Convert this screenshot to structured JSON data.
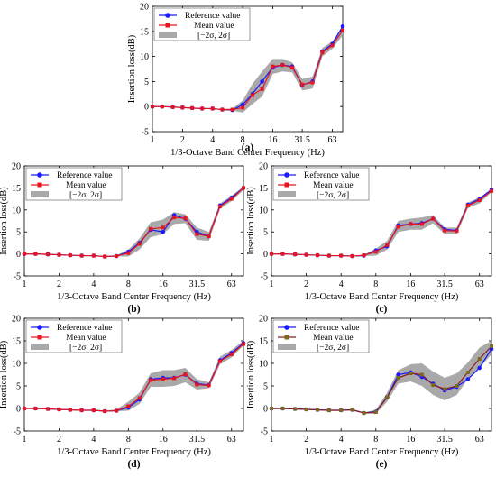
{
  "legend": {
    "reference": "Reference value",
    "mean": "Mean value",
    "band": "[−2σ, 2σ]"
  },
  "axes": {
    "xlabel": "1/3-Octave Band Center Frequency (Hz)",
    "ylabel": "Insertion loss(dB)",
    "xticks": [
      "1",
      "2",
      "4",
      "8",
      "16",
      "31.5",
      "63"
    ],
    "yticks": [
      "-5",
      "0",
      "5",
      "10",
      "15",
      "20"
    ]
  },
  "colors": {
    "reference": "#1a1aff",
    "mean": "#e8141e",
    "band": "#a9a9a9",
    "mean_line_e": "#8b1a1a",
    "mean_marker_e": "#7a6a1a"
  },
  "chart_data": [
    {
      "type": "line",
      "panel_label": "(a)",
      "x": [
        1,
        1.25,
        1.6,
        2,
        2.5,
        3.15,
        4,
        5,
        6.3,
        8,
        10,
        12.5,
        16,
        20,
        25,
        31.5,
        40,
        50,
        63,
        80
      ],
      "xlim": [
        1,
        80
      ],
      "xscale": "log",
      "ylim": [
        -5,
        20
      ],
      "legend_position": "top-left",
      "series": [
        {
          "name": "Reference value",
          "values": [
            0,
            0,
            -0.1,
            -0.2,
            -0.3,
            -0.4,
            -0.4,
            -0.6,
            -0.7,
            0.4,
            2.5,
            5.0,
            7.8,
            8.3,
            8.0,
            4.3,
            5.0,
            11.0,
            12.5,
            16.0
          ]
        },
        {
          "name": "Mean value",
          "values": [
            0,
            0,
            -0.1,
            -0.2,
            -0.3,
            -0.4,
            -0.4,
            -0.6,
            -0.6,
            -0.2,
            2.3,
            3.5,
            8.0,
            8.3,
            7.8,
            4.4,
            4.8,
            10.8,
            12.2,
            15.2
          ]
        }
      ],
      "band": {
        "name": "[−2σ, 2σ]",
        "lower": [
          0,
          0,
          -0.1,
          -0.2,
          -0.3,
          -0.4,
          -0.4,
          -0.7,
          -0.8,
          -1.2,
          0.5,
          2.0,
          6.5,
          7.0,
          6.8,
          3.2,
          3.6,
          10.0,
          11.5,
          14.2
        ],
        "upper": [
          0,
          0,
          -0.1,
          -0.2,
          -0.3,
          -0.4,
          -0.4,
          -0.5,
          -0.4,
          1.2,
          4.5,
          7.0,
          9.5,
          9.5,
          8.8,
          5.5,
          6.0,
          11.7,
          13.0,
          16.0
        ]
      }
    },
    {
      "type": "line",
      "panel_label": "(b)",
      "x": [
        1,
        1.25,
        1.6,
        2,
        2.5,
        3.15,
        4,
        5,
        6.3,
        8,
        10,
        12.5,
        16,
        20,
        25,
        31.5,
        40,
        50,
        63,
        80
      ],
      "xlim": [
        1,
        80
      ],
      "xscale": "log",
      "ylim": [
        -5,
        20
      ],
      "legend_position": "top-left",
      "series": [
        {
          "name": "Reference value",
          "values": [
            0,
            0,
            -0.1,
            -0.2,
            -0.3,
            -0.4,
            -0.4,
            -0.6,
            -0.5,
            0.5,
            2.5,
            5.5,
            5.0,
            8.8,
            8.0,
            5.0,
            4.0,
            11.0,
            12.8,
            15.0
          ]
        },
        {
          "name": "Mean value",
          "values": [
            0,
            0,
            -0.1,
            -0.2,
            -0.3,
            -0.4,
            -0.4,
            -0.6,
            -0.5,
            0.2,
            2.3,
            5.7,
            6.0,
            8.3,
            8.1,
            4.5,
            4.0,
            10.8,
            12.5,
            15.0
          ]
        }
      ],
      "band": {
        "name": "[−2σ, 2σ]",
        "lower": [
          0,
          0,
          -0.1,
          -0.2,
          -0.3,
          -0.4,
          -0.4,
          -0.7,
          -0.6,
          -0.6,
          1.0,
          3.8,
          4.5,
          6.8,
          7.0,
          3.2,
          3.0,
          10.2,
          12.0,
          14.5
        ],
        "upper": [
          0,
          0,
          -0.1,
          -0.2,
          -0.3,
          -0.4,
          -0.4,
          -0.5,
          -0.3,
          1.0,
          3.5,
          7.2,
          7.8,
          9.5,
          9.0,
          6.0,
          5.0,
          11.5,
          13.2,
          15.3
        ]
      }
    },
    {
      "type": "line",
      "panel_label": "(c)",
      "x": [
        1,
        1.25,
        1.6,
        2,
        2.5,
        3.15,
        4,
        5,
        6.3,
        8,
        10,
        12.5,
        16,
        20,
        25,
        31.5,
        40,
        50,
        63,
        80
      ],
      "xlim": [
        1,
        80
      ],
      "xscale": "log",
      "ylim": [
        -5,
        20
      ],
      "legend_position": "top-left",
      "series": [
        {
          "name": "Reference value",
          "values": [
            0,
            0,
            -0.1,
            -0.2,
            -0.3,
            -0.4,
            -0.4,
            -0.5,
            -0.4,
            0.8,
            1.7,
            6.5,
            6.8,
            7.0,
            8.0,
            5.6,
            5.3,
            11.2,
            12.5,
            14.6
          ]
        },
        {
          "name": "Mean value",
          "values": [
            0,
            0,
            -0.1,
            -0.2,
            -0.3,
            -0.4,
            -0.4,
            -0.5,
            -0.3,
            0.5,
            2.0,
            6.2,
            6.8,
            6.8,
            8.0,
            5.3,
            5.2,
            11.0,
            12.2,
            14.3
          ]
        }
      ],
      "band": {
        "name": "[−2σ, 2σ]",
        "lower": [
          0,
          0,
          -0.1,
          -0.2,
          -0.3,
          -0.4,
          -0.4,
          -0.6,
          -0.5,
          -0.4,
          1.0,
          5.0,
          5.5,
          5.5,
          7.0,
          4.5,
          4.5,
          10.4,
          11.5,
          14.0
        ],
        "upper": [
          0,
          0,
          -0.1,
          -0.2,
          -0.3,
          -0.4,
          -0.4,
          -0.4,
          -0.2,
          1.2,
          3.0,
          7.5,
          8.0,
          8.3,
          8.8,
          6.0,
          6.0,
          11.7,
          12.8,
          14.8
        ]
      }
    },
    {
      "type": "line",
      "panel_label": "(d)",
      "x": [
        1,
        1.25,
        1.6,
        2,
        2.5,
        3.15,
        4,
        5,
        6.3,
        8,
        10,
        12.5,
        16,
        20,
        25,
        31.5,
        40,
        50,
        63,
        80
      ],
      "xlim": [
        1,
        80
      ],
      "xscale": "log",
      "ylim": [
        -5,
        20
      ],
      "legend_position": "top-left",
      "series": [
        {
          "name": "Reference value",
          "values": [
            0,
            0,
            -0.1,
            -0.2,
            -0.3,
            -0.4,
            -0.4,
            -0.6,
            -0.5,
            0.2,
            2.0,
            6.5,
            6.8,
            6.8,
            7.5,
            5.5,
            5.2,
            10.7,
            12.3,
            14.5
          ]
        },
        {
          "name": "Mean value",
          "values": [
            0,
            0,
            -0.1,
            -0.2,
            -0.3,
            -0.4,
            -0.4,
            -0.6,
            -0.5,
            0.5,
            2.3,
            6.3,
            6.5,
            6.7,
            7.6,
            5.3,
            5.1,
            10.5,
            12.0,
            14.3
          ]
        }
      ],
      "band": {
        "name": "[−2σ, 2σ]",
        "lower": [
          0,
          0,
          -0.1,
          -0.2,
          -0.3,
          -0.4,
          -0.4,
          -0.7,
          -0.6,
          -0.5,
          1.0,
          4.8,
          4.8,
          5.0,
          5.8,
          4.2,
          4.5,
          9.8,
          11.3,
          14.0
        ],
        "upper": [
          0,
          0,
          -0.1,
          -0.2,
          -0.3,
          -0.4,
          -0.4,
          -0.5,
          -0.2,
          1.5,
          3.5,
          7.8,
          8.5,
          8.5,
          9.0,
          6.5,
          5.8,
          11.5,
          13.0,
          15.0
        ]
      }
    },
    {
      "type": "line",
      "panel_label": "(e)",
      "x": [
        1,
        1.25,
        1.6,
        2,
        2.5,
        3.15,
        4,
        5,
        6.3,
        8,
        10,
        12.5,
        16,
        20,
        25,
        31.5,
        40,
        50,
        63,
        80
      ],
      "xlim": [
        1,
        80
      ],
      "xscale": "log",
      "ylim": [
        -5,
        20
      ],
      "legend_position": "top-left",
      "series": [
        {
          "name": "Reference value",
          "values": [
            0,
            0,
            -0.1,
            -0.2,
            -0.3,
            -0.4,
            -0.4,
            -0.3,
            -1.0,
            -0.7,
            2.5,
            7.5,
            8.0,
            7.0,
            5.5,
            4.0,
            4.8,
            6.5,
            9.0,
            13.2
          ]
        },
        {
          "name": "Mean value",
          "values": [
            0,
            0,
            -0.1,
            -0.2,
            -0.3,
            -0.4,
            -0.4,
            -0.3,
            -1.0,
            -0.8,
            2.5,
            6.8,
            7.8,
            7.5,
            5.2,
            4.3,
            5.0,
            8.0,
            11.0,
            13.8
          ]
        }
      ],
      "band": {
        "name": "[−2σ, 2σ]",
        "lower": [
          0,
          0,
          -0.1,
          -0.2,
          -0.3,
          -0.4,
          -0.4,
          -0.4,
          -1.1,
          -1.2,
          1.5,
          5.5,
          6.0,
          5.0,
          3.0,
          1.8,
          3.0,
          6.5,
          9.0,
          12.0
        ],
        "upper": [
          0,
          0,
          -0.1,
          -0.2,
          -0.3,
          -0.4,
          -0.4,
          -0.2,
          -0.9,
          -0.3,
          3.5,
          8.5,
          9.8,
          10.0,
          8.2,
          6.8,
          7.8,
          10.2,
          13.5,
          15.0
        ]
      }
    }
  ]
}
